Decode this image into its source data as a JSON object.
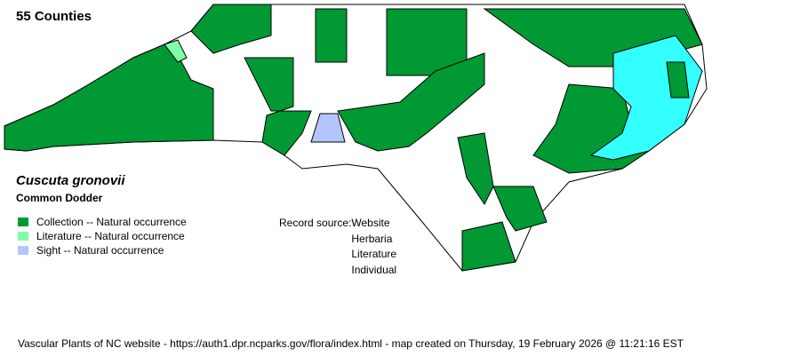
{
  "county_count": "55 Counties",
  "species": {
    "scientific_name": "Cuscuta gronovii",
    "common_name": "Common Dodder"
  },
  "legend": [
    {
      "label": "Collection -- Natural occurrence",
      "color": "#009933"
    },
    {
      "label": "Literature -- Natural occurrence",
      "color": "#80ffaa"
    },
    {
      "label": "Sight -- Natural occurrence",
      "color": "#b3c6ff"
    }
  ],
  "record_source": {
    "label": "Record source:",
    "items": [
      "Website",
      "Herbaria",
      "Literature",
      "Individual"
    ]
  },
  "colors": {
    "absent": "#ffffff",
    "water": "#33ffff"
  },
  "footer": "Vascular Plants of NC website - https://auth1.dpr.ncparks.gov/flora/index.html - map created on Thursday, 19 February 2026 @ 11:21:16 EST"
}
